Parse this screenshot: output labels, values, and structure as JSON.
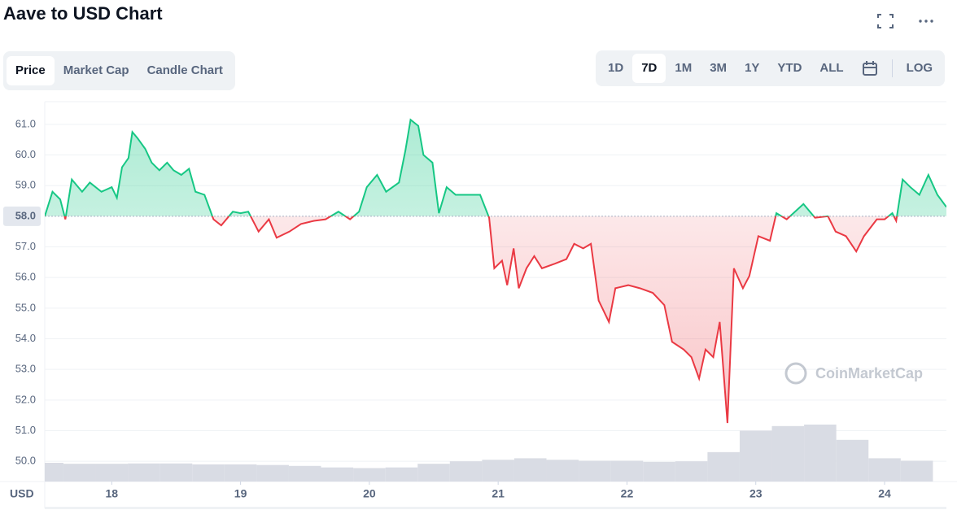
{
  "chart_data": {
    "type": "line",
    "title": "Aave to USD Chart",
    "tabs": [
      "Price",
      "Market Cap",
      "Candle Chart"
    ],
    "ranges": [
      "1D",
      "7D",
      "1M",
      "3M",
      "1Y",
      "YTD",
      "ALL"
    ],
    "log_label": "LOG",
    "watermark": "CoinMarketCap",
    "x_label": "USD",
    "up_color": "#16c784",
    "down_color": "#ea3943",
    "baseline": {
      "value": 58,
      "label": "58.0"
    },
    "xlim": [
      17.48,
      24.48
    ],
    "xticks": [
      18,
      19,
      20,
      21,
      22,
      23,
      24
    ],
    "ylim": [
      49.34,
      61.74
    ],
    "yticks": [
      {
        "value": 50,
        "label": "50.0"
      },
      {
        "value": 51,
        "label": "51.0"
      },
      {
        "value": 52,
        "label": "52.0"
      },
      {
        "value": 53,
        "label": "53.0"
      },
      {
        "value": 54,
        "label": "54.0"
      },
      {
        "value": 55,
        "label": "55.0"
      },
      {
        "value": 56,
        "label": "56.0"
      },
      {
        "value": 57,
        "label": "57.0"
      },
      {
        "value": 59,
        "label": "59.0"
      },
      {
        "value": 60,
        "label": "60.0"
      },
      {
        "value": 61,
        "label": "61.0"
      }
    ],
    "grid": true,
    "x": [
      17.48,
      17.54,
      17.6,
      17.64,
      17.69,
      17.77,
      17.83,
      17.92,
      18.0,
      18.04,
      18.08,
      18.13,
      18.16,
      18.2,
      18.26,
      18.31,
      18.37,
      18.43,
      18.48,
      18.54,
      18.6,
      18.65,
      18.72,
      18.79,
      18.85,
      18.94,
      19.0,
      19.06,
      19.14,
      19.22,
      19.28,
      19.38,
      19.47,
      19.57,
      19.66,
      19.76,
      19.85,
      19.92,
      19.98,
      20.06,
      20.13,
      20.23,
      20.28,
      20.32,
      20.38,
      20.42,
      20.49,
      20.54,
      20.6,
      20.67,
      20.76,
      20.86,
      20.93,
      20.97,
      21.03,
      21.07,
      21.12,
      21.16,
      21.22,
      21.28,
      21.34,
      21.44,
      21.53,
      21.59,
      21.66,
      21.72,
      21.78,
      21.86,
      21.91,
      22.01,
      22.1,
      22.2,
      22.29,
      22.35,
      22.44,
      22.5,
      22.56,
      22.61,
      22.67,
      22.72,
      22.78,
      22.83,
      22.9,
      22.95,
      23.02,
      23.11,
      23.16,
      23.24,
      23.37,
      23.46,
      23.56,
      23.62,
      23.7,
      23.78,
      23.84,
      23.94,
      24.0,
      24.06,
      24.09,
      24.14,
      24.2,
      24.27,
      24.34,
      24.41,
      24.48
    ],
    "values": [
      58.0,
      58.8,
      58.55,
      57.9,
      59.2,
      58.8,
      59.1,
      58.8,
      58.95,
      58.6,
      59.6,
      59.9,
      60.75,
      60.55,
      60.2,
      59.75,
      59.5,
      59.75,
      59.5,
      59.35,
      59.55,
      58.8,
      58.7,
      57.9,
      57.7,
      58.15,
      58.1,
      58.15,
      57.5,
      57.9,
      57.3,
      57.5,
      57.75,
      57.85,
      57.9,
      58.15,
      57.9,
      58.15,
      58.95,
      59.35,
      58.8,
      59.1,
      60.15,
      61.15,
      60.95,
      60.0,
      59.75,
      58.1,
      58.95,
      58.7,
      58.7,
      58.7,
      57.95,
      56.3,
      56.55,
      55.75,
      56.95,
      55.65,
      56.3,
      56.7,
      56.3,
      56.45,
      56.6,
      57.1,
      56.95,
      57.1,
      55.25,
      54.55,
      55.65,
      55.75,
      55.65,
      55.5,
      55.1,
      53.9,
      53.65,
      53.4,
      52.7,
      53.65,
      53.4,
      54.55,
      51.25,
      56.3,
      55.65,
      56.05,
      57.35,
      57.2,
      58.1,
      57.9,
      58.4,
      57.95,
      58.0,
      57.5,
      57.35,
      56.85,
      57.35,
      57.9,
      57.9,
      58.1,
      57.85,
      59.2,
      58.95,
      58.7,
      59.35,
      58.7,
      58.3
    ],
    "volume": {
      "color": "#d9dce4",
      "x": [
        17.5,
        17.75,
        18.0,
        18.25,
        18.5,
        18.75,
        19.0,
        19.25,
        19.5,
        19.75,
        20.0,
        20.25,
        20.5,
        20.75,
        21.0,
        21.25,
        21.5,
        21.75,
        22.0,
        22.25,
        22.5,
        22.75,
        23.0,
        23.25,
        23.5,
        23.75,
        24.0,
        24.25
      ],
      "values": [
        49.95,
        49.92,
        49.92,
        49.93,
        49.93,
        49.9,
        49.9,
        49.88,
        49.85,
        49.8,
        49.78,
        49.8,
        49.92,
        50.0,
        50.05,
        50.1,
        50.05,
        50.02,
        50.02,
        49.98,
        50.0,
        50.3,
        51.0,
        51.15,
        51.2,
        50.7,
        50.1,
        50.02
      ]
    }
  }
}
